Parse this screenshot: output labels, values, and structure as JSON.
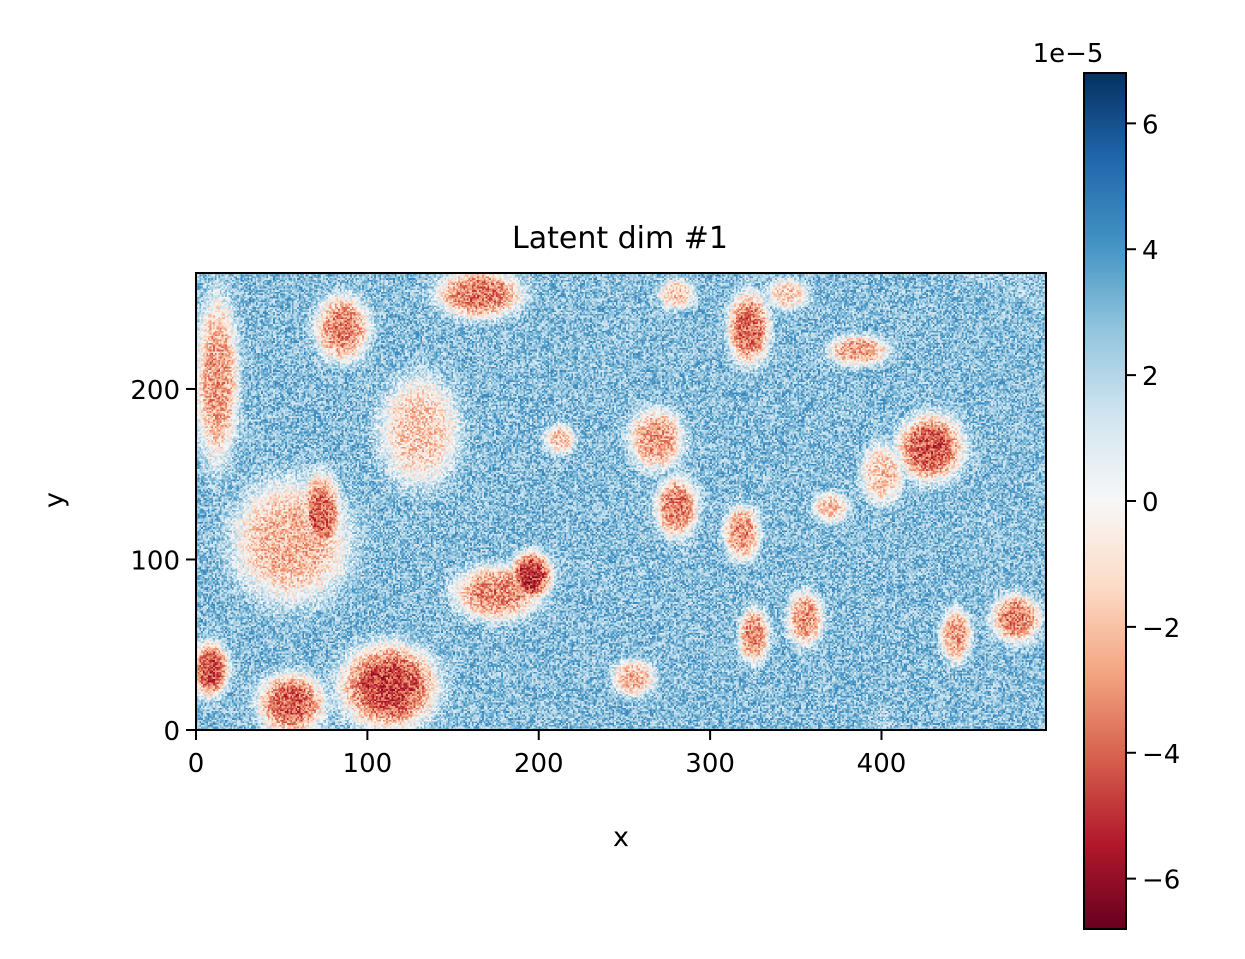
{
  "chart_data": {
    "type": "heatmap",
    "title": "Latent dim #1",
    "xlabel": "x",
    "ylabel": "y",
    "xlim": [
      0,
      496
    ],
    "ylim": [
      0,
      268
    ],
    "xticks": [
      0,
      100,
      200,
      300,
      400
    ],
    "yticks": [
      0,
      100,
      200
    ],
    "colormap": "RdBu",
    "colorbar": {
      "min": -6.8e-05,
      "max": 6.8e-05,
      "ticks": [
        -6,
        -4,
        -2,
        0,
        2,
        4,
        6
      ],
      "tick_labels": [
        "−6",
        "−4",
        "−2",
        "0",
        "2",
        "4",
        "6"
      ],
      "offset_label": "1e−5"
    },
    "background_value": 2.8e-05,
    "noise_amplitude": 1.8e-05,
    "regions": [
      {
        "cx": 12,
        "cy": 205,
        "rx": 14,
        "ry": 55,
        "value": -2.8e-05
      },
      {
        "cx": 8,
        "cy": 35,
        "rx": 12,
        "ry": 18,
        "value": -4.5e-05
      },
      {
        "cx": 55,
        "cy": 110,
        "rx": 38,
        "ry": 40,
        "value": -2.2e-05
      },
      {
        "cx": 72,
        "cy": 125,
        "rx": 14,
        "ry": 28,
        "value": -4e-05
      },
      {
        "cx": 55,
        "cy": 15,
        "rx": 22,
        "ry": 20,
        "value": -4e-05
      },
      {
        "cx": 112,
        "cy": 25,
        "rx": 32,
        "ry": 28,
        "value": -4.5e-05
      },
      {
        "cx": 85,
        "cy": 235,
        "rx": 18,
        "ry": 22,
        "value": -3.2e-05
      },
      {
        "cx": 130,
        "cy": 175,
        "rx": 26,
        "ry": 36,
        "value": -1.7e-05
      },
      {
        "cx": 165,
        "cy": 255,
        "rx": 28,
        "ry": 16,
        "value": -3.5e-05
      },
      {
        "cx": 175,
        "cy": 80,
        "rx": 28,
        "ry": 18,
        "value": -3.2e-05
      },
      {
        "cx": 195,
        "cy": 90,
        "rx": 14,
        "ry": 16,
        "value": -5e-05
      },
      {
        "cx": 212,
        "cy": 170,
        "rx": 10,
        "ry": 10,
        "value": -1.8e-05
      },
      {
        "cx": 255,
        "cy": 30,
        "rx": 14,
        "ry": 12,
        "value": -2.2e-05
      },
      {
        "cx": 268,
        "cy": 170,
        "rx": 18,
        "ry": 20,
        "value": -2.8e-05
      },
      {
        "cx": 280,
        "cy": 130,
        "rx": 14,
        "ry": 20,
        "value": -3.5e-05
      },
      {
        "cx": 322,
        "cy": 235,
        "rx": 14,
        "ry": 24,
        "value": -3.8e-05
      },
      {
        "cx": 318,
        "cy": 115,
        "rx": 12,
        "ry": 18,
        "value": -3e-05
      },
      {
        "cx": 325,
        "cy": 55,
        "rx": 10,
        "ry": 18,
        "value": -3.2e-05
      },
      {
        "cx": 355,
        "cy": 65,
        "rx": 12,
        "ry": 18,
        "value": -3e-05
      },
      {
        "cx": 386,
        "cy": 222,
        "rx": 20,
        "ry": 10,
        "value": -2.8e-05
      },
      {
        "cx": 400,
        "cy": 150,
        "rx": 14,
        "ry": 20,
        "value": -1.8e-05
      },
      {
        "cx": 428,
        "cy": 165,
        "rx": 22,
        "ry": 22,
        "value": -4.2e-05
      },
      {
        "cx": 443,
        "cy": 55,
        "rx": 10,
        "ry": 18,
        "value": -2.8e-05
      },
      {
        "cx": 478,
        "cy": 65,
        "rx": 16,
        "ry": 16,
        "value": -3.5e-05
      },
      {
        "cx": 370,
        "cy": 130,
        "rx": 12,
        "ry": 10,
        "value": -1.8e-05
      },
      {
        "cx": 280,
        "cy": 255,
        "rx": 12,
        "ry": 10,
        "value": -1.6e-05
      },
      {
        "cx": 345,
        "cy": 255,
        "rx": 14,
        "ry": 10,
        "value": -1.6e-05
      }
    ]
  }
}
